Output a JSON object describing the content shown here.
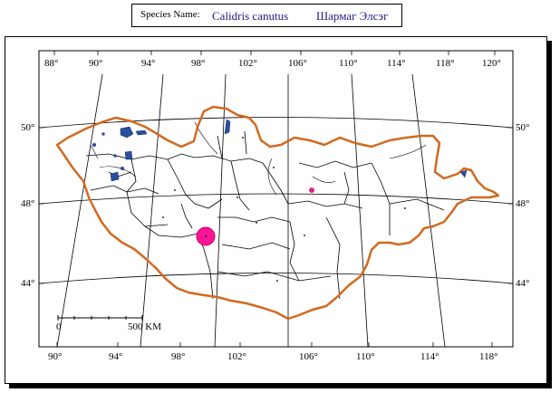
{
  "header": {
    "species_label": "Species Name:",
    "species_latin": "Calidris canutus",
    "species_local": "Шармаг Элсэг"
  },
  "map": {
    "lon_top": [
      "88°",
      "90°",
      "94°",
      "98°",
      "102°",
      "106°",
      "110°",
      "114°",
      "118°",
      "120°"
    ],
    "lon_bottom": [
      "90°",
      "94°",
      "98°",
      "102°",
      "106°",
      "110°",
      "114°",
      "118°"
    ],
    "lat_left": [
      "50°",
      "48°",
      "44°"
    ],
    "lat_right": [
      "50°",
      "48°",
      "44°"
    ],
    "scale_start": "0",
    "scale_end": "500 KM",
    "colors": {
      "border": "#d2691e",
      "water": "#2a4f9e",
      "occurrence": "#ff1493",
      "graticule": "#000000"
    }
  }
}
